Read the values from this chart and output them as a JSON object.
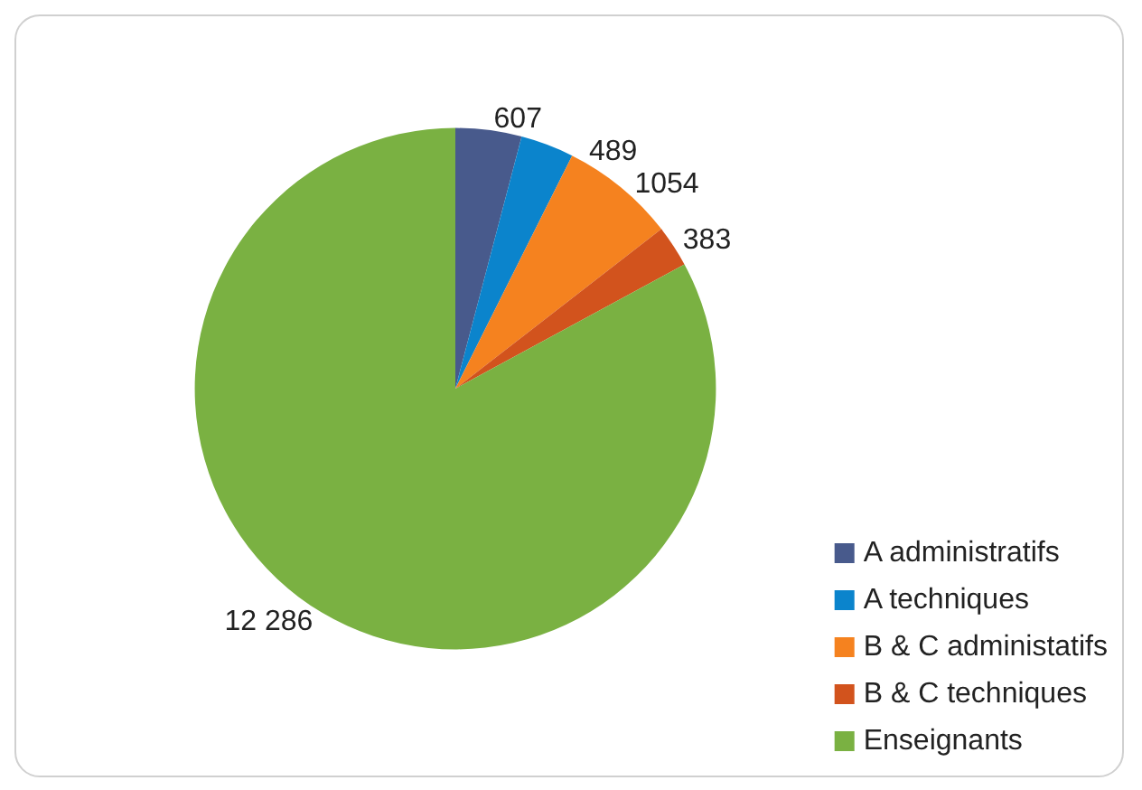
{
  "chart_data": {
    "type": "pie",
    "categories": [
      "A administratifs",
      "A techniques",
      "B & C administatifs",
      "B & C techniques",
      "Enseignants"
    ],
    "values": [
      607,
      489,
      1054,
      383,
      12286
    ],
    "value_labels": [
      "607",
      "489",
      "1054",
      "383",
      "12 286"
    ],
    "colors": [
      "#485a8c",
      "#0b84cc",
      "#f5821f",
      "#d2531d",
      "#7ab142"
    ],
    "legend": "bottom right"
  }
}
